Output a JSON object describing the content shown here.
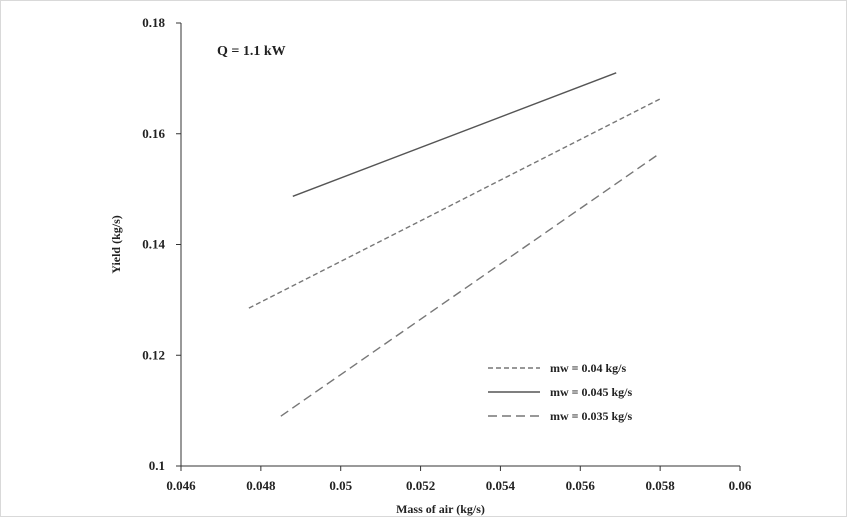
{
  "chart_data": {
    "type": "line",
    "title": "",
    "annotation": "Q = 1.1 kW",
    "xlabel": "Mass of air (kg/s)",
    "ylabel": "Yield (kg/s)",
    "xlim": [
      0.046,
      0.06
    ],
    "ylim": [
      0.1,
      0.18
    ],
    "x_ticks": [
      "0.046",
      "0.048",
      "0.05",
      "0.052",
      "0.054",
      "0.056",
      "0.058",
      "0.06"
    ],
    "y_ticks": [
      "0.1",
      "0.12",
      "0.14",
      "0.16",
      "0.18"
    ],
    "grid": false,
    "legend_position": "bottom-right",
    "series": [
      {
        "name": "mw = 0.04 kg/s",
        "style": "dashed",
        "color": "#777777",
        "x": [
          0.0477,
          0.058
        ],
        "y": [
          0.1285,
          0.1663
        ]
      },
      {
        "name": "mw = 0.045 kg/s",
        "style": "solid",
        "color": "#555555",
        "x": [
          0.0488,
          0.0569
        ],
        "y": [
          0.1487,
          0.171
        ]
      },
      {
        "name": "mw = 0.035 kg/s",
        "style": "long-dashed",
        "color": "#777777",
        "x": [
          0.0485,
          0.058
        ],
        "y": [
          0.109,
          0.1565
        ]
      }
    ]
  }
}
